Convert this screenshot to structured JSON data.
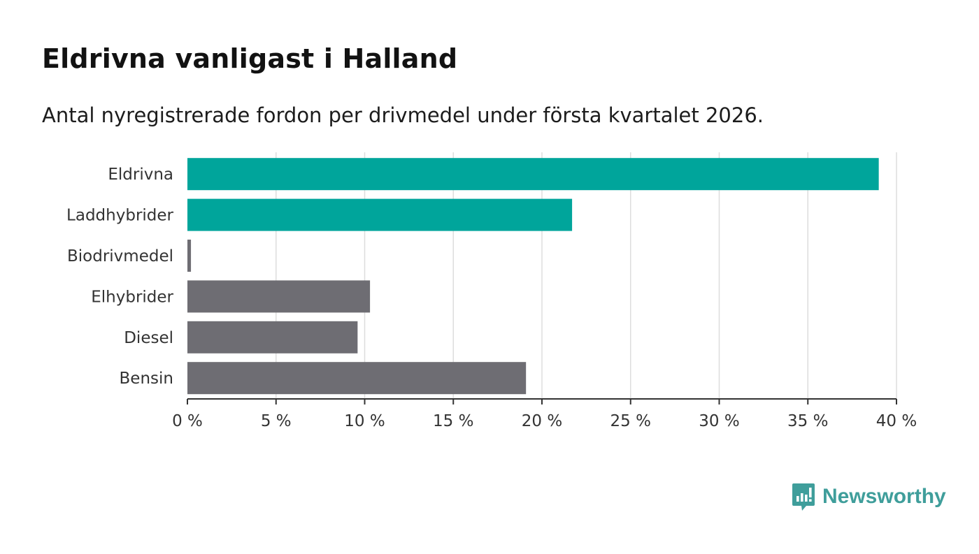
{
  "header": {
    "title": "Eldrivna vanligast i Halland",
    "subtitle": "Antal nyregistrerade fordon per drivmedel under första kvartalet 2026."
  },
  "brand": {
    "name": "Newsworthy",
    "logo_icon": "bar-chart-speech-bubble-icon",
    "color": "#3f9e9b"
  },
  "chart_data": {
    "type": "bar",
    "orientation": "horizontal",
    "title": "Eldrivna vanligast i Halland",
    "subtitle": "Antal nyregistrerade fordon per drivmedel under första kvartalet 2026.",
    "xlabel": "",
    "ylabel": "",
    "categories": [
      "Eldrivna",
      "Laddhybrider",
      "Biodrivmedel",
      "Elhybrider",
      "Diesel",
      "Bensin"
    ],
    "values": [
      39.0,
      21.7,
      0.2,
      10.3,
      9.6,
      19.1
    ],
    "unit": "%",
    "colors": [
      "#00a59b",
      "#00a59b",
      "#6e6d73",
      "#6e6d73",
      "#6e6d73",
      "#6e6d73"
    ],
    "xlim": [
      0,
      40
    ],
    "ticks": [
      0,
      5,
      10,
      15,
      20,
      25,
      30,
      35,
      40
    ],
    "tick_labels": [
      "0 %",
      "5 %",
      "10 %",
      "15 %",
      "20 %",
      "25 %",
      "30 %",
      "35 %",
      "40 %"
    ],
    "grid": true,
    "gridColor": "#dddddd",
    "axisColor": "#333333"
  }
}
